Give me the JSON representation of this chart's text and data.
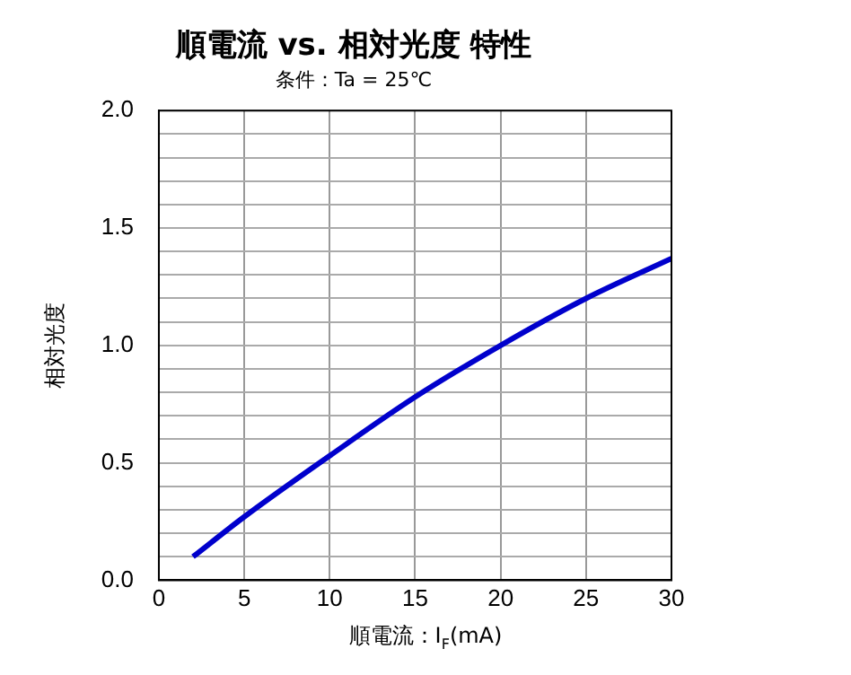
{
  "chart_data": {
    "type": "line",
    "title": "順電流 vs. 相対光度 特性",
    "subtitle": "条件：Ta = 25℃",
    "xlabel": "順電流：I$_{F}$(mA)",
    "ylabel": "相対光度",
    "x": [
      2,
      5,
      10,
      15,
      20,
      25,
      30
    ],
    "series": [
      {
        "color": "#0000cc",
        "values": [
          0.1,
          0.27,
          0.53,
          0.78,
          1.0,
          1.2,
          1.37
        ]
      }
    ],
    "xlim": [
      0,
      30
    ],
    "xticks": [
      0,
      5,
      10,
      15,
      20,
      25,
      30
    ],
    "ylim": [
      0,
      2
    ],
    "yticks": [
      {
        "value": 0,
        "label": "0.0"
      },
      {
        "value": 0.1,
        "label": null
      },
      {
        "value": 0.2,
        "label": null
      },
      {
        "value": 0.3,
        "label": null
      },
      {
        "value": 0.4,
        "label": null
      },
      {
        "value": 0.5,
        "label": "0.5"
      },
      {
        "value": 0.6,
        "label": null
      },
      {
        "value": 0.7,
        "label": null
      },
      {
        "value": 0.8,
        "label": null
      },
      {
        "value": 0.9,
        "label": null
      },
      {
        "value": 1,
        "label": "1.0"
      },
      {
        "value": 1.1,
        "label": null
      },
      {
        "value": 1.2,
        "label": null
      },
      {
        "value": 1.3,
        "label": null
      },
      {
        "value": 1.4,
        "label": null
      },
      {
        "value": 1.5,
        "label": "1.5"
      },
      {
        "value": 1.6,
        "label": null
      },
      {
        "value": 1.7,
        "label": null
      },
      {
        "value": 1.8,
        "label": null
      },
      {
        "value": 1.9,
        "label": null
      },
      {
        "value": 2,
        "label": "2.0"
      }
    ],
    "grid": true,
    "legend": false,
    "marker": "none",
    "line_style": "solid"
  }
}
